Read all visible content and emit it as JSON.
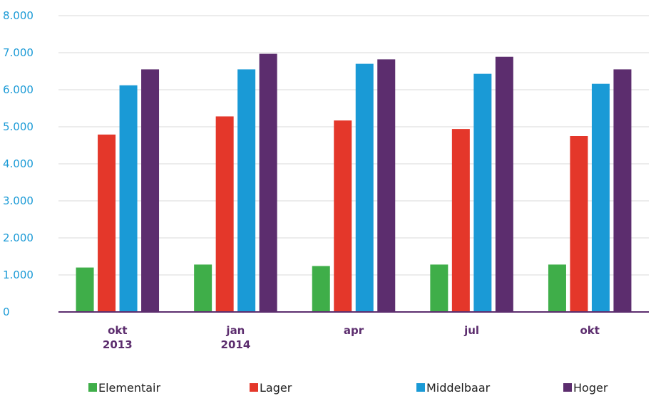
{
  "chart_data": {
    "type": "bar",
    "categories": [
      [
        "okt",
        "2013"
      ],
      [
        "jan",
        "2014"
      ],
      [
        "apr"
      ],
      [
        "jul"
      ],
      [
        "okt"
      ]
    ],
    "series": [
      {
        "name": "Elementair",
        "color": "#3fae49",
        "values": [
          1200,
          1280,
          1240,
          1280,
          1280
        ]
      },
      {
        "name": "Lager",
        "color": "#e4372a",
        "values": [
          4790,
          5280,
          5170,
          4940,
          4750
        ]
      },
      {
        "name": "Middelbaar",
        "color": "#1a9ad6",
        "values": [
          6120,
          6550,
          6700,
          6430,
          6160
        ]
      },
      {
        "name": "Hoger",
        "color": "#5c2d6e",
        "values": [
          6550,
          6970,
          6820,
          6890,
          6550
        ]
      }
    ],
    "yticks": [
      "0",
      "1.000",
      "2.000",
      "3.000",
      "4.000",
      "5.000",
      "6.000",
      "7.000",
      "8.000"
    ],
    "ylim": [
      0,
      8000
    ],
    "grid": true,
    "legend_position": "bottom"
  }
}
